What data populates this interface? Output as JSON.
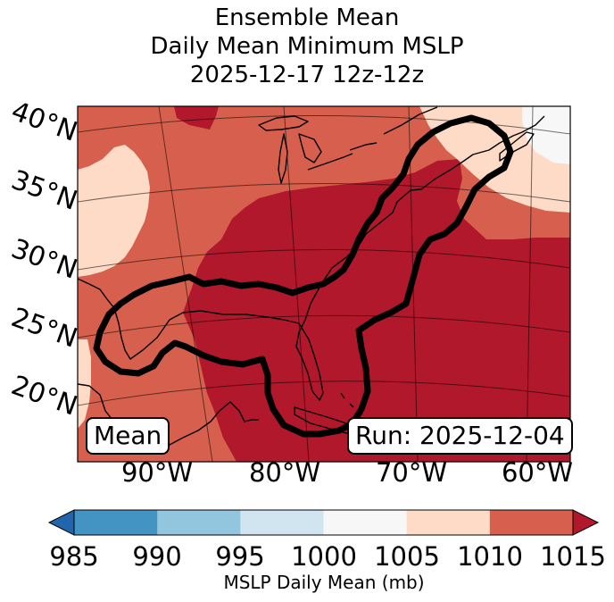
{
  "title": {
    "line1": "Ensemble Mean",
    "line2": "Daily Mean Minimum MSLP",
    "line3": "2025-12-17 12z-12z"
  },
  "map": {
    "lat_labels": [
      "40°N",
      "35°N",
      "30°N",
      "25°N",
      "20°N"
    ],
    "lon_labels": [
      "90°W",
      "80°W",
      "70°W",
      "60°W"
    ],
    "mean_label": "Mean",
    "run_label": "Run: 2025-12-04",
    "colors": {
      "lt_1015": "#d6604d",
      "ge_1015": "#b2182b",
      "lt_1010": "#fddbc7",
      "lt_1005": "#f7f7f7",
      "contour": "#000000"
    }
  },
  "colorbar": {
    "ticks": [
      "985",
      "990",
      "995",
      "1000",
      "1005",
      "1010",
      "1015"
    ],
    "label": "MSLP Daily Mean (mb)",
    "colors": [
      "#4393c3",
      "#92c5de",
      "#d1e5f0",
      "#f7f7f7",
      "#fddbc7",
      "#d6604d"
    ],
    "under_color": "#2166ac",
    "over_color": "#b2182b"
  }
}
